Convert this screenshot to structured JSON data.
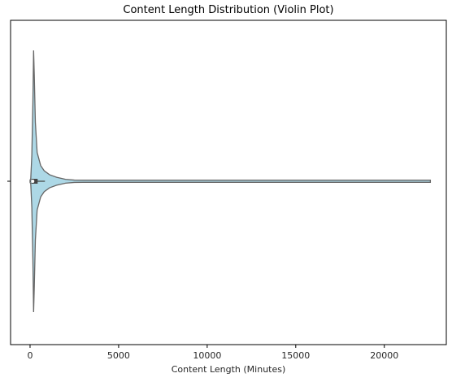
{
  "chart_data": {
    "type": "violin",
    "title": "Content Length Distribution (Violin Plot)",
    "xlabel": "Content Length (Minutes)",
    "ylabel": "",
    "xlim": [
      -1100,
      23500
    ],
    "xticks": [
      0,
      5000,
      10000,
      15000,
      20000
    ],
    "xtick_labels": [
      "0",
      "5000",
      "10000",
      "15000",
      "20000"
    ],
    "orientation": "horizontal",
    "grid": false,
    "density_profile": [
      {
        "x": 0,
        "w": 0.0
      },
      {
        "x": 40,
        "w": 0.02
      },
      {
        "x": 100,
        "w": 0.2
      },
      {
        "x": 160,
        "w": 0.6
      },
      {
        "x": 200,
        "w": 1.0
      },
      {
        "x": 240,
        "w": 0.8
      },
      {
        "x": 300,
        "w": 0.45
      },
      {
        "x": 400,
        "w": 0.22
      },
      {
        "x": 600,
        "w": 0.12
      },
      {
        "x": 800,
        "w": 0.08
      },
      {
        "x": 1100,
        "w": 0.05
      },
      {
        "x": 1500,
        "w": 0.03
      },
      {
        "x": 2000,
        "w": 0.015
      },
      {
        "x": 2500,
        "w": 0.009
      },
      {
        "x": 3000,
        "w": 0.007
      },
      {
        "x": 22600,
        "w": 0.006
      }
    ],
    "box": {
      "q1": 70,
      "median": 150,
      "q3": 430,
      "whisker_low": 0,
      "whisker_high": 840
    },
    "colors": {
      "fill": "#add8e6",
      "edge": "#666666",
      "box": "#444444",
      "text": "#262626"
    }
  }
}
